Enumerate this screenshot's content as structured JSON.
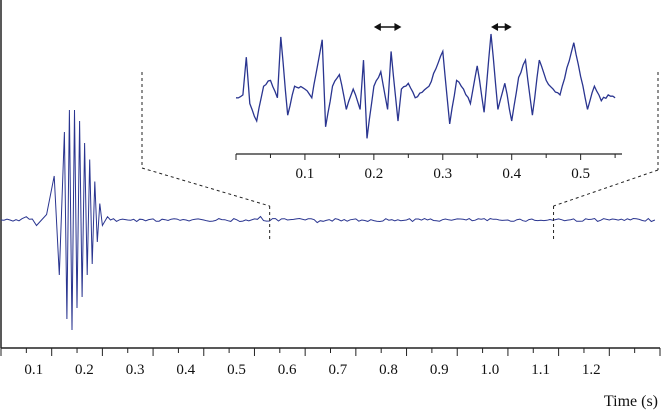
{
  "chart_data": [
    {
      "type": "line",
      "panel": "main",
      "xlabel": "Time (s)",
      "ylabel": "",
      "title": "",
      "xlim": [
        0,
        1.3
      ],
      "x_ticks": [
        0.1,
        0.2,
        0.3,
        0.4,
        0.5,
        0.6,
        0.7,
        0.8,
        0.9,
        1.0,
        1.1,
        1.2
      ],
      "x_tick_labels": [
        "0.1",
        "0.2",
        "0.3",
        "0.4",
        "0.5",
        "0.6",
        "0.7",
        "0.8",
        "0.9",
        "1.0",
        "1.1",
        "1.2"
      ],
      "grid": false,
      "zoom_window": [
        0.53,
        1.09
      ],
      "series": [
        {
          "x": [
            0.0,
            0.05,
            0.07,
            0.09,
            0.105,
            0.115,
            0.125,
            0.13,
            0.135,
            0.14,
            0.145,
            0.15,
            0.155,
            0.16,
            0.165,
            0.17,
            0.175,
            0.18,
            0.185,
            0.19,
            0.195,
            0.2,
            0.21,
            0.25,
            0.3,
            0.4,
            0.5,
            0.6,
            0.7,
            0.8,
            0.9,
            1.0,
            1.1,
            1.2,
            1.29
          ],
          "y": [
            0,
            0.03,
            -0.05,
            0.05,
            0.4,
            -0.5,
            0.8,
            -0.9,
            1.0,
            -1.0,
            1.0,
            -0.8,
            0.9,
            -0.7,
            0.7,
            -0.5,
            0.55,
            -0.4,
            0.35,
            -0.2,
            0.15,
            -0.05,
            0.03,
            0.0,
            0.01,
            0.0,
            0.01,
            0.0,
            0.01,
            0.0,
            0.01,
            0.0,
            0.01,
            0.0,
            0.0
          ]
        }
      ]
    },
    {
      "type": "line",
      "panel": "inset",
      "xlabel": "",
      "ylabel": "",
      "title": "",
      "xlim": [
        0,
        0.56
      ],
      "x_ticks": [
        0.1,
        0.2,
        0.3,
        0.4,
        0.5
      ],
      "x_tick_labels": [
        "0.1",
        "0.2",
        "0.3",
        "0.4",
        "0.5"
      ],
      "grid": false,
      "annotations": [
        {
          "type": "double-arrow",
          "x": [
            0.2,
            0.24
          ]
        },
        {
          "type": "double-arrow",
          "x": [
            0.37,
            0.4
          ]
        }
      ],
      "series": [
        {
          "x": [
            0.0,
            0.01,
            0.015,
            0.02,
            0.03,
            0.04,
            0.05,
            0.06,
            0.065,
            0.075,
            0.085,
            0.1,
            0.11,
            0.125,
            0.13,
            0.14,
            0.15,
            0.16,
            0.17,
            0.18,
            0.185,
            0.19,
            0.2,
            0.21,
            0.22,
            0.225,
            0.235,
            0.24,
            0.25,
            0.26,
            0.28,
            0.3,
            0.31,
            0.32,
            0.33,
            0.34,
            0.35,
            0.36,
            0.37,
            0.38,
            0.39,
            0.4,
            0.41,
            0.42,
            0.43,
            0.44,
            0.45,
            0.46,
            0.47,
            0.49,
            0.51,
            0.52,
            0.53,
            0.54,
            0.55
          ],
          "y": [
            -0.1,
            -0.05,
            0.6,
            -0.2,
            -0.5,
            0.1,
            0.2,
            -0.1,
            0.95,
            -0.4,
            0.1,
            0.05,
            -0.1,
            0.9,
            -0.6,
            0.1,
            0.3,
            -0.3,
            0.05,
            -0.3,
            0.55,
            -0.8,
            0.1,
            0.35,
            -0.3,
            0.7,
            -0.5,
            0.05,
            0.15,
            -0.1,
            0.1,
            0.7,
            -0.55,
            0.2,
            0.05,
            -0.2,
            0.45,
            -0.35,
            1.0,
            -0.3,
            0.15,
            -0.5,
            0.25,
            0.55,
            -0.4,
            0.55,
            0.2,
            0.05,
            -0.05,
            0.85,
            -0.3,
            0.1,
            -0.15,
            -0.05,
            -0.1
          ]
        }
      ]
    }
  ],
  "colors": {
    "trace": "#2a3590",
    "axis": "#222222",
    "annotation": "#111111"
  }
}
